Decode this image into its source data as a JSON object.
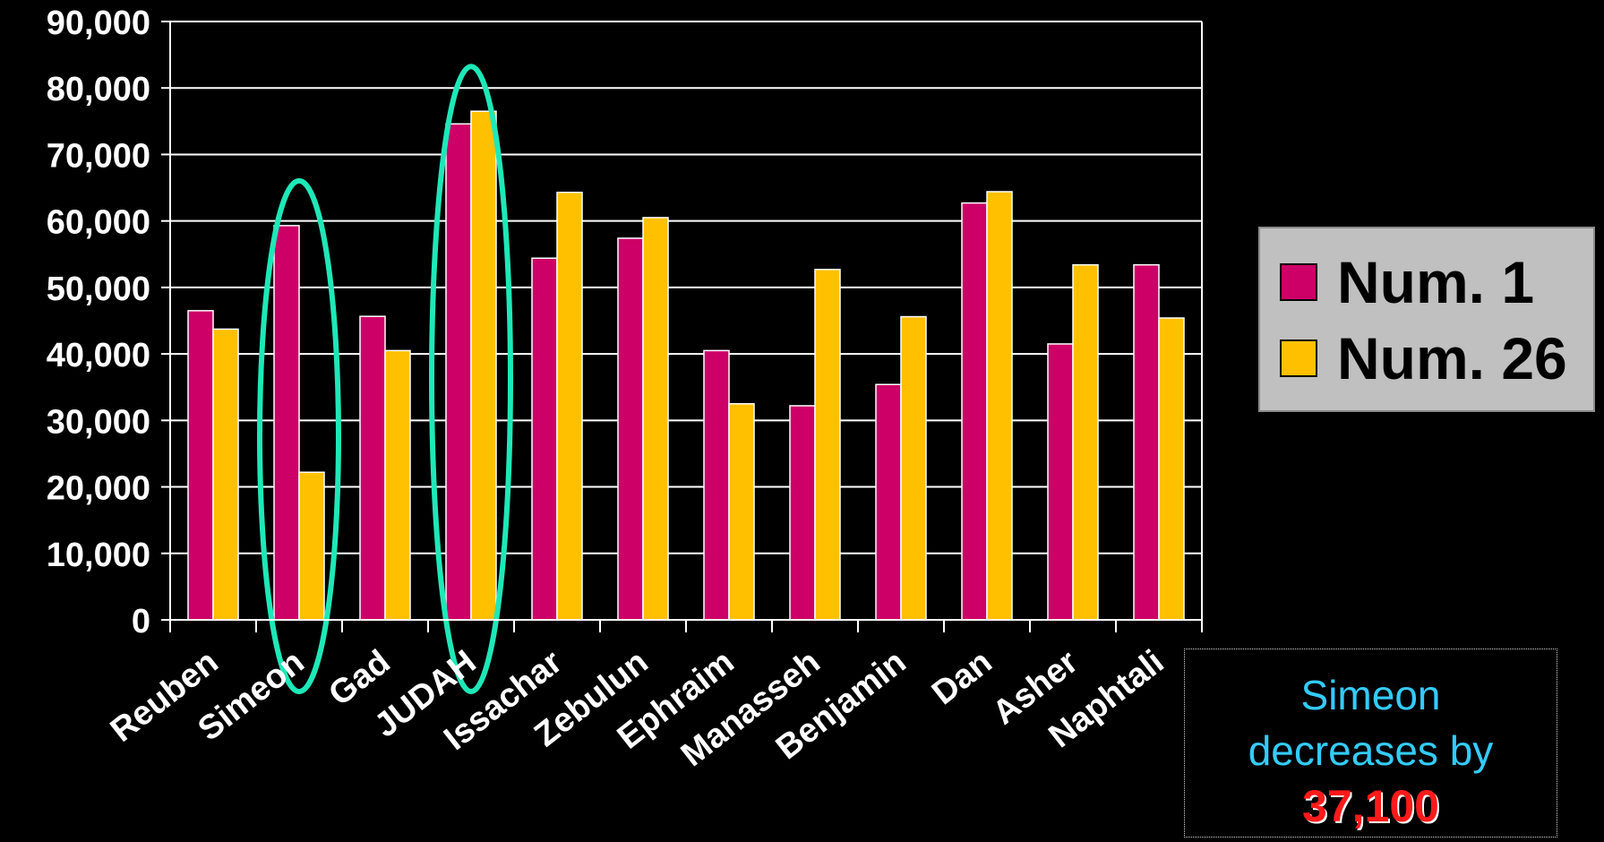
{
  "chart_data": {
    "type": "bar",
    "categories": [
      "Reuben",
      "Simeon",
      "Gad",
      "JUDAH",
      "Issachar",
      "Zebulun",
      "Ephraim",
      "Manasseh",
      "Benjamin",
      "Dan",
      "Asher",
      "Naphtali"
    ],
    "series": [
      {
        "name": "Num. 1",
        "color": "#cc0066",
        "values": [
          46500,
          59300,
          45650,
          74600,
          54400,
          57400,
          40500,
          32200,
          35400,
          62700,
          41500,
          53400
        ]
      },
      {
        "name": "Num. 26",
        "color": "#ffc000",
        "values": [
          43730,
          22200,
          40500,
          76500,
          64300,
          60500,
          32500,
          52700,
          45600,
          64400,
          53400,
          45400
        ]
      }
    ],
    "ylim": [
      0,
      90000
    ],
    "yticks": [
      "0",
      "10,000",
      "20,000",
      "30,000",
      "40,000",
      "50,000",
      "60,000",
      "70,000",
      "80,000",
      "90,000"
    ],
    "grid": true,
    "legend_position": "right",
    "highlighted_categories": [
      "Simeon",
      "JUDAH"
    ],
    "highlight_color": "#1ee8b8"
  },
  "annotation": {
    "line1": "Simeon",
    "line2": "decreases by",
    "value": "37,100"
  }
}
